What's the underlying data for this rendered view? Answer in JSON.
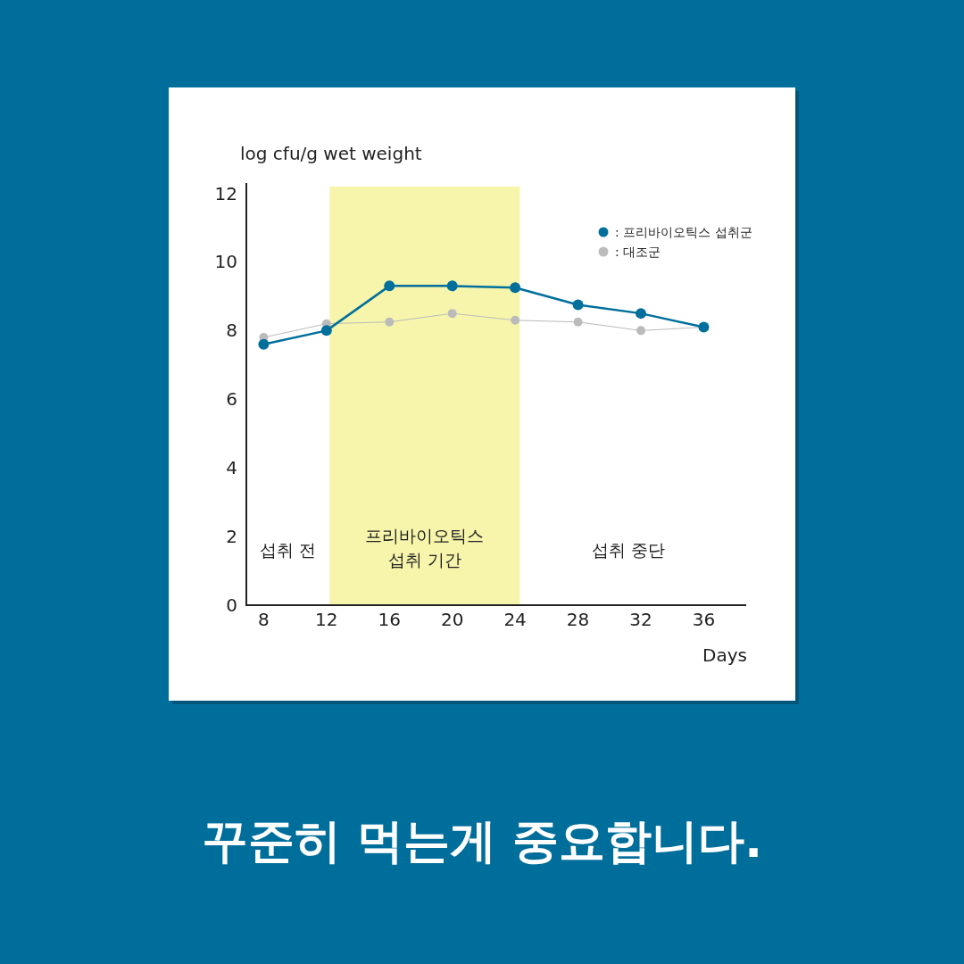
{
  "chart_data": {
    "type": "line",
    "title": "꾸준히 먹는게 중요합니다.",
    "xlabel": "Days",
    "ylabel": "log cfu/g wet weight",
    "x": [
      8,
      12,
      16,
      20,
      24,
      28,
      32,
      36
    ],
    "series": [
      {
        "name": ": 프리바이오틱스 섭취군",
        "color": "#006f9c",
        "values": [
          7.6,
          8.0,
          9.3,
          9.3,
          9.25,
          8.75,
          8.5,
          8.1
        ]
      },
      {
        "name": ": 대조군",
        "color": "#bbbbbb",
        "values": [
          7.8,
          8.2,
          8.25,
          8.5,
          8.3,
          8.25,
          8.0,
          8.1
        ]
      }
    ],
    "xlim": [
      6.9,
      38.7
    ],
    "ylim": [
      0,
      12.3
    ],
    "xticks": [
      8,
      12,
      16,
      20,
      24,
      28,
      32,
      36
    ],
    "yticks": [
      0,
      2,
      4,
      6,
      8,
      10,
      12
    ],
    "bands": [
      {
        "axis": "x",
        "from": 12.2,
        "to": 24.3,
        "label": "프리바이오틱스 섭취 기간",
        "color": "#f7f5ab"
      }
    ],
    "annotations": [
      "섭취 전",
      "섭취 중단"
    ],
    "legend": "top right",
    "marker": "circle",
    "line_style": "solid",
    "grid": false
  }
}
